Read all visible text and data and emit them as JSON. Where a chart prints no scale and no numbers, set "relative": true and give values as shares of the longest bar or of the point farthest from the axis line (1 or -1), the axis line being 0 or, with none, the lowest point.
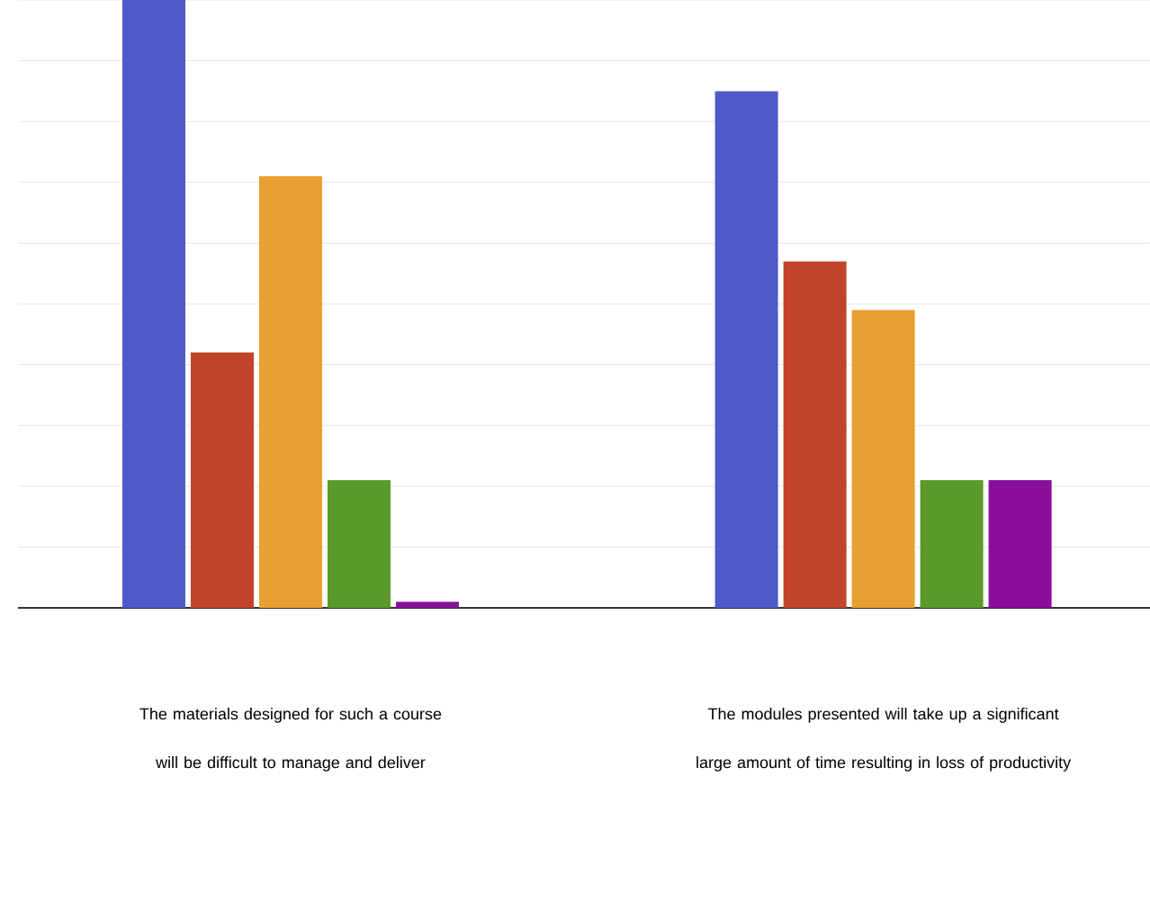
{
  "chart_data": {
    "type": "bar",
    "relative": true,
    "grid": "y",
    "categories": [
      "The materials designed for such a course will be difficult to manage and deliver",
      "The modules presented will take up a significant large amount of time resulting in loss of productivity"
    ],
    "series": [
      {
        "color": "#5059c9",
        "values": [
          1,
          0.85
        ]
      },
      {
        "color": "#c0432a",
        "values": [
          0.42,
          0.57
        ]
      },
      {
        "color": "#e8a033",
        "values": [
          0.71,
          0.49
        ]
      },
      {
        "color": "#5a9a2c",
        "values": [
          0.21,
          0.21
        ]
      },
      {
        "color": "#8a0e9a",
        "values": [
          0.01,
          0.21
        ]
      }
    ]
  }
}
